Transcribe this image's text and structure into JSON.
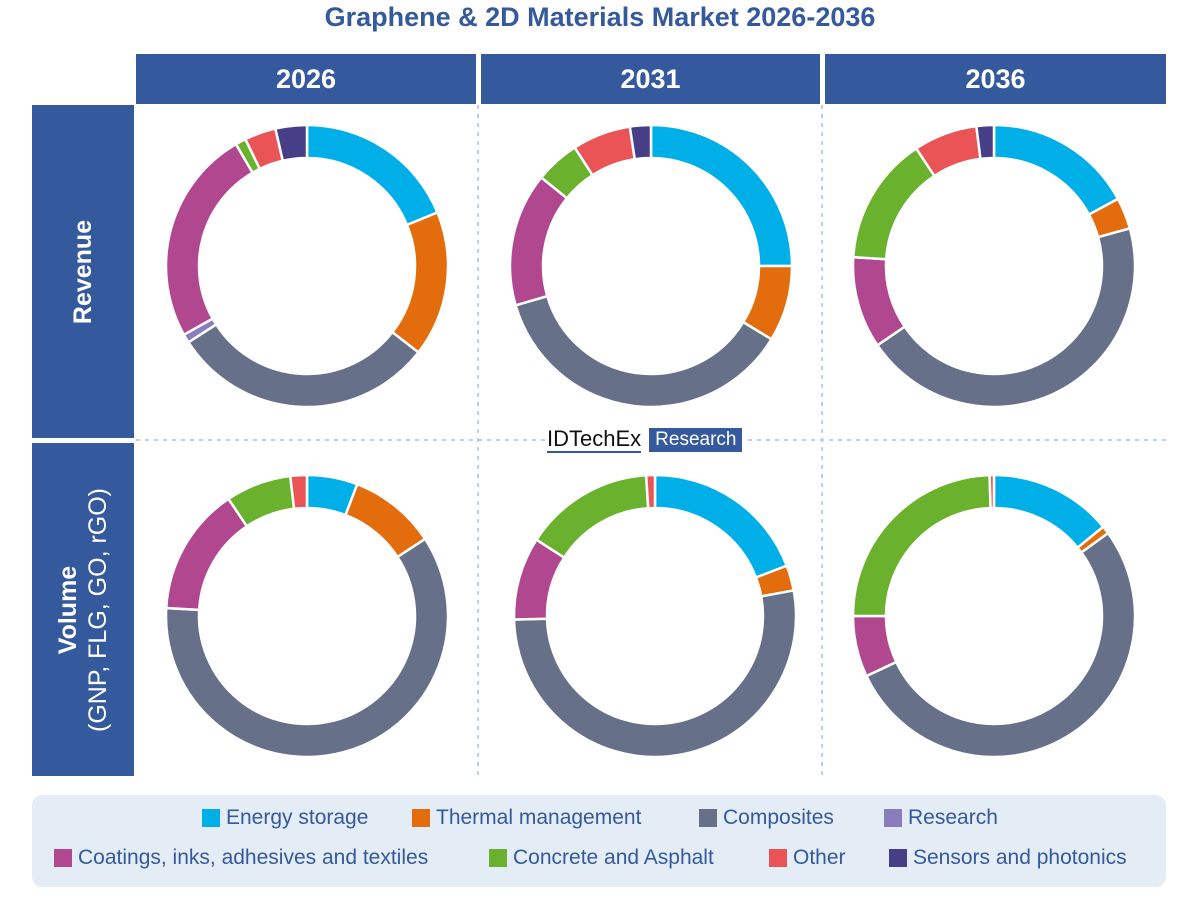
{
  "title": "Graphene & 2D Materials Market 2026-2036",
  "columns": [
    "2026",
    "2031",
    "2036"
  ],
  "rows": [
    "Revenue",
    "Volume",
    "(GNP, FLG, GO, rGO)"
  ],
  "logo": {
    "brand": "IDTechEx",
    "tag": "Research"
  },
  "chart_data": {
    "type": "pie",
    "donut": true,
    "categories": [
      "Energy storage",
      "Thermal management",
      "Composites",
      "Research",
      "Coatings, inks, adhesives and textiles",
      "Concrete and Asphalt",
      "Other",
      "Sensors and photonics"
    ],
    "colors": [
      "#00aee8",
      "#e36c0c",
      "#667089",
      "#8a7dbd",
      "#b0478f",
      "#6ab12e",
      "#ea5457",
      "#463f87"
    ],
    "legend_position": "bottom",
    "charts": [
      {
        "row": "Revenue",
        "year": "2026",
        "values": [
          18.8,
          16.7,
          30.4,
          1.0,
          24.7,
          1.2,
          3.6,
          3.6
        ]
      },
      {
        "row": "Revenue",
        "year": "2031",
        "values": [
          25.0,
          8.7,
          36.8,
          0,
          15.3,
          5.1,
          6.7,
          2.4
        ]
      },
      {
        "row": "Revenue",
        "year": "2036",
        "values": [
          17.1,
          3.6,
          44.8,
          0,
          10.5,
          14.7,
          7.3,
          2.0
        ]
      },
      {
        "row": "Volume",
        "year": "2026",
        "values": [
          5.8,
          10.0,
          60.1,
          0,
          14.7,
          7.5,
          1.9,
          0
        ]
      },
      {
        "row": "Volume",
        "year": "2031",
        "values": [
          19.2,
          2.9,
          52.5,
          0,
          9.5,
          14.9,
          1.0,
          0
        ]
      },
      {
        "row": "Volume",
        "year": "2036",
        "values": [
          14.1,
          0.9,
          53.0,
          0,
          7.0,
          24.5,
          0.5,
          0
        ]
      }
    ]
  }
}
